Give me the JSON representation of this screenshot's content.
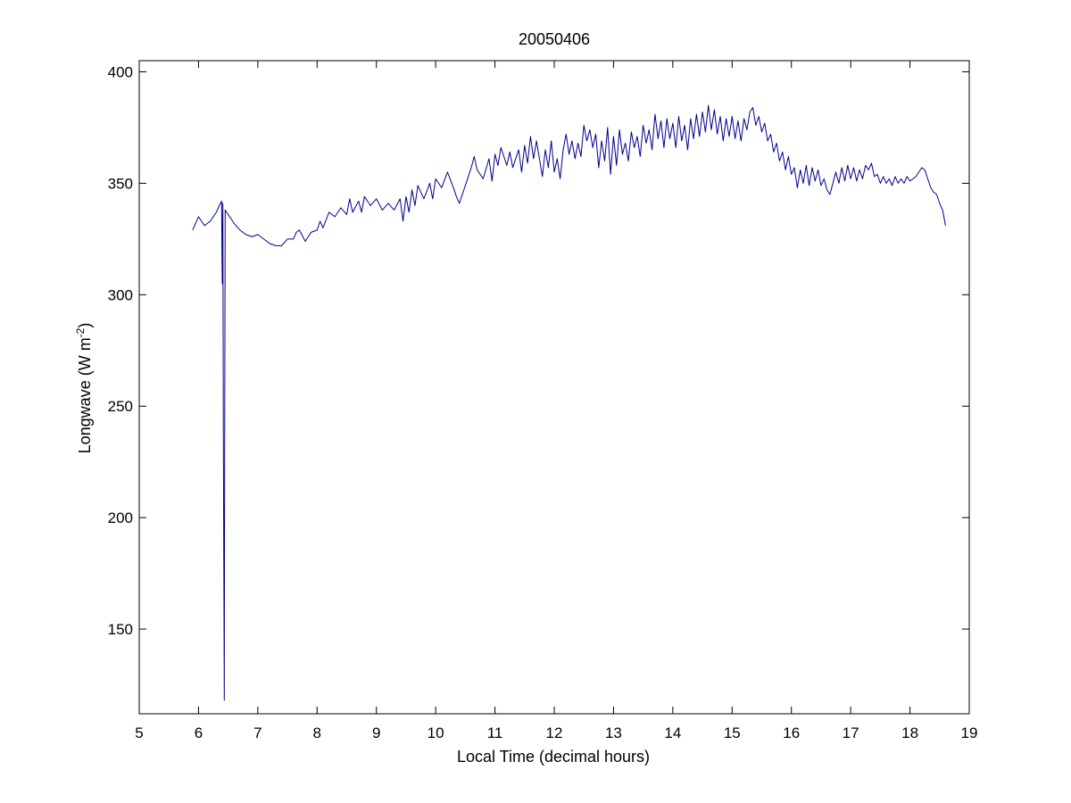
{
  "chart_data": {
    "type": "line",
    "title": "20050406",
    "xlabel": "Local Time (decimal hours)",
    "ylabel_prefix": "Longwave (W m",
    "ylabel_exponent": "-2",
    "ylabel_suffix": ")",
    "xlim": [
      5,
      19
    ],
    "ylim": [
      112,
      405
    ],
    "xticks": [
      5,
      6,
      7,
      8,
      9,
      10,
      11,
      12,
      13,
      14,
      15,
      16,
      17,
      18,
      19
    ],
    "yticks": [
      150,
      200,
      250,
      300,
      350,
      400
    ],
    "grid": false,
    "line_color": "#00008B",
    "series": [
      {
        "points": [
          [
            5.9,
            329
          ],
          [
            5.95,
            332
          ],
          [
            6.0,
            335
          ],
          [
            6.05,
            333
          ],
          [
            6.1,
            331
          ],
          [
            6.15,
            332
          ],
          [
            6.2,
            333
          ],
          [
            6.25,
            335
          ],
          [
            6.3,
            337
          ],
          [
            6.35,
            340
          ],
          [
            6.39,
            342
          ],
          [
            6.4,
            305
          ],
          [
            6.41,
            341
          ],
          [
            6.42,
            232
          ],
          [
            6.43,
            155
          ],
          [
            6.435,
            118
          ],
          [
            6.44,
            228
          ],
          [
            6.45,
            338
          ],
          [
            6.5,
            336
          ],
          [
            6.55,
            334
          ],
          [
            6.6,
            332
          ],
          [
            6.7,
            329
          ],
          [
            6.8,
            327
          ],
          [
            6.9,
            326
          ],
          [
            7.0,
            327
          ],
          [
            7.1,
            325
          ],
          [
            7.2,
            323
          ],
          [
            7.3,
            322
          ],
          [
            7.4,
            322
          ],
          [
            7.5,
            325
          ],
          [
            7.6,
            325
          ],
          [
            7.65,
            328
          ],
          [
            7.7,
            329
          ],
          [
            7.8,
            324
          ],
          [
            7.9,
            328
          ],
          [
            8.0,
            329
          ],
          [
            8.05,
            333
          ],
          [
            8.1,
            330
          ],
          [
            8.2,
            337
          ],
          [
            8.3,
            335
          ],
          [
            8.4,
            339
          ],
          [
            8.5,
            336
          ],
          [
            8.55,
            343
          ],
          [
            8.6,
            337
          ],
          [
            8.7,
            342
          ],
          [
            8.75,
            337
          ],
          [
            8.8,
            344
          ],
          [
            8.9,
            340
          ],
          [
            9.0,
            343
          ],
          [
            9.1,
            338
          ],
          [
            9.2,
            341
          ],
          [
            9.3,
            338
          ],
          [
            9.4,
            343
          ],
          [
            9.45,
            333
          ],
          [
            9.5,
            344
          ],
          [
            9.55,
            337
          ],
          [
            9.6,
            347
          ],
          [
            9.65,
            340
          ],
          [
            9.7,
            349
          ],
          [
            9.8,
            343
          ],
          [
            9.9,
            350
          ],
          [
            9.95,
            343
          ],
          [
            10.0,
            352
          ],
          [
            10.1,
            348
          ],
          [
            10.2,
            355
          ],
          [
            10.3,
            348
          ],
          [
            10.35,
            344
          ],
          [
            10.4,
            341
          ],
          [
            10.5,
            349
          ],
          [
            10.6,
            357
          ],
          [
            10.65,
            362
          ],
          [
            10.7,
            356
          ],
          [
            10.8,
            352
          ],
          [
            10.9,
            361
          ],
          [
            10.95,
            351
          ],
          [
            11.0,
            363
          ],
          [
            11.05,
            358
          ],
          [
            11.1,
            366
          ],
          [
            11.2,
            358
          ],
          [
            11.25,
            364
          ],
          [
            11.3,
            357
          ],
          [
            11.4,
            365
          ],
          [
            11.45,
            355
          ],
          [
            11.5,
            367
          ],
          [
            11.55,
            359
          ],
          [
            11.6,
            371
          ],
          [
            11.65,
            361
          ],
          [
            11.7,
            369
          ],
          [
            11.8,
            353
          ],
          [
            11.85,
            365
          ],
          [
            11.9,
            357
          ],
          [
            11.95,
            369
          ],
          [
            12.0,
            355
          ],
          [
            12.05,
            361
          ],
          [
            12.1,
            352
          ],
          [
            12.15,
            365
          ],
          [
            12.2,
            372
          ],
          [
            12.25,
            363
          ],
          [
            12.3,
            369
          ],
          [
            12.35,
            361
          ],
          [
            12.4,
            368
          ],
          [
            12.45,
            362
          ],
          [
            12.5,
            376
          ],
          [
            12.55,
            369
          ],
          [
            12.6,
            374
          ],
          [
            12.65,
            366
          ],
          [
            12.7,
            372
          ],
          [
            12.75,
            357
          ],
          [
            12.8,
            369
          ],
          [
            12.85,
            360
          ],
          [
            12.9,
            375
          ],
          [
            12.95,
            354
          ],
          [
            13.0,
            371
          ],
          [
            13.05,
            358
          ],
          [
            13.1,
            374
          ],
          [
            13.15,
            363
          ],
          [
            13.2,
            368
          ],
          [
            13.25,
            360
          ],
          [
            13.3,
            373
          ],
          [
            13.35,
            366
          ],
          [
            13.4,
            371
          ],
          [
            13.45,
            362
          ],
          [
            13.5,
            376
          ],
          [
            13.55,
            368
          ],
          [
            13.6,
            374
          ],
          [
            13.65,
            365
          ],
          [
            13.7,
            381
          ],
          [
            13.75,
            370
          ],
          [
            13.8,
            378
          ],
          [
            13.85,
            366
          ],
          [
            13.9,
            379
          ],
          [
            13.95,
            370
          ],
          [
            14.0,
            377
          ],
          [
            14.05,
            366
          ],
          [
            14.1,
            380
          ],
          [
            14.15,
            369
          ],
          [
            14.2,
            376
          ],
          [
            14.25,
            365
          ],
          [
            14.3,
            379
          ],
          [
            14.35,
            370
          ],
          [
            14.4,
            381
          ],
          [
            14.45,
            371
          ],
          [
            14.5,
            382
          ],
          [
            14.55,
            373
          ],
          [
            14.6,
            385
          ],
          [
            14.65,
            374
          ],
          [
            14.7,
            383
          ],
          [
            14.75,
            372
          ],
          [
            14.8,
            380
          ],
          [
            14.85,
            369
          ],
          [
            14.9,
            379
          ],
          [
            14.95,
            371
          ],
          [
            15.0,
            380
          ],
          [
            15.05,
            370
          ],
          [
            15.1,
            378
          ],
          [
            15.15,
            369
          ],
          [
            15.2,
            379
          ],
          [
            15.25,
            374
          ],
          [
            15.3,
            382
          ],
          [
            15.35,
            384
          ],
          [
            15.4,
            376
          ],
          [
            15.45,
            380
          ],
          [
            15.5,
            373
          ],
          [
            15.55,
            377
          ],
          [
            15.6,
            369
          ],
          [
            15.65,
            372
          ],
          [
            15.7,
            364
          ],
          [
            15.75,
            368
          ],
          [
            15.8,
            360
          ],
          [
            15.85,
            364
          ],
          [
            15.9,
            356
          ],
          [
            15.95,
            362
          ],
          [
            16.0,
            354
          ],
          [
            16.05,
            357
          ],
          [
            16.1,
            348
          ],
          [
            16.15,
            356
          ],
          [
            16.2,
            350
          ],
          [
            16.25,
            358
          ],
          [
            16.3,
            349
          ],
          [
            16.35,
            357
          ],
          [
            16.4,
            351
          ],
          [
            16.45,
            356
          ],
          [
            16.5,
            349
          ],
          [
            16.55,
            352
          ],
          [
            16.6,
            347
          ],
          [
            16.65,
            345
          ],
          [
            16.7,
            350
          ],
          [
            16.75,
            355
          ],
          [
            16.8,
            350
          ],
          [
            16.85,
            357
          ],
          [
            16.9,
            351
          ],
          [
            16.95,
            358
          ],
          [
            17.0,
            352
          ],
          [
            17.05,
            357
          ],
          [
            17.1,
            351
          ],
          [
            17.15,
            356
          ],
          [
            17.2,
            352
          ],
          [
            17.25,
            358
          ],
          [
            17.3,
            356
          ],
          [
            17.35,
            359
          ],
          [
            17.4,
            353
          ],
          [
            17.45,
            354
          ],
          [
            17.5,
            350
          ],
          [
            17.55,
            353
          ],
          [
            17.6,
            350
          ],
          [
            17.65,
            352
          ],
          [
            17.7,
            349
          ],
          [
            17.75,
            353
          ],
          [
            17.8,
            350
          ],
          [
            17.85,
            352
          ],
          [
            17.9,
            350
          ],
          [
            17.95,
            353
          ],
          [
            18.0,
            351
          ],
          [
            18.05,
            352
          ],
          [
            18.1,
            353
          ],
          [
            18.15,
            355
          ],
          [
            18.2,
            357
          ],
          [
            18.25,
            356
          ],
          [
            18.3,
            352
          ],
          [
            18.35,
            348
          ],
          [
            18.4,
            346
          ],
          [
            18.45,
            345
          ],
          [
            18.5,
            341
          ],
          [
            18.55,
            338
          ],
          [
            18.6,
            331
          ]
        ]
      }
    ]
  }
}
